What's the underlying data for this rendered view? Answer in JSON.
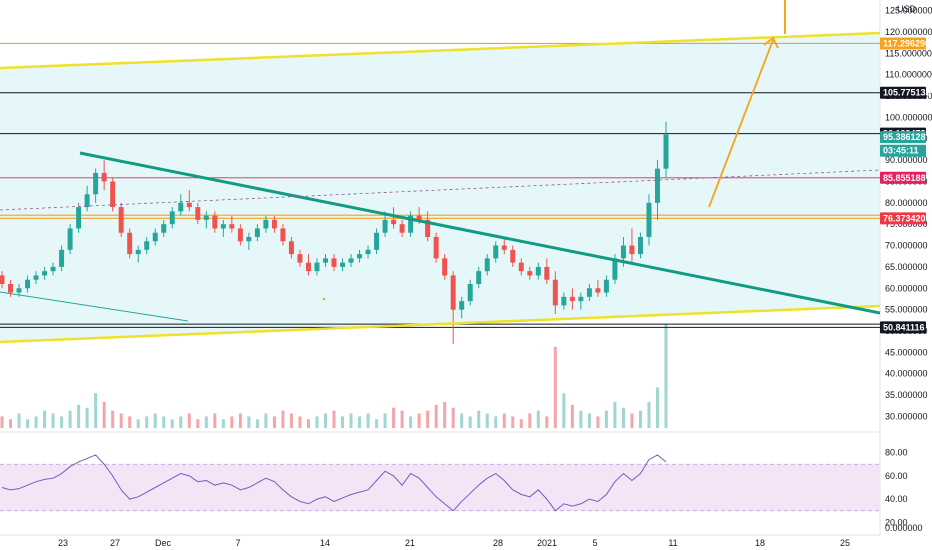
{
  "chart_data": {
    "type": "candlestick",
    "currency": "USD",
    "price_axis_ticks": [
      "125.000000",
      "120.000000",
      "115.000000",
      "110.000000",
      "105.000000",
      "100.000000",
      "95.000000",
      "90.000000",
      "85.000000",
      "80.000000",
      "75.000000",
      "70.000000",
      "65.000000",
      "60.000000",
      "55.000000",
      "50.000000",
      "45.000000",
      "40.000000",
      "35.000000",
      "30.000000"
    ],
    "ylim": [
      28,
      127
    ],
    "x_ticks": [
      "23",
      "27",
      "Dec",
      "7",
      "14",
      "21",
      "28",
      "2021",
      "5",
      "11",
      "18",
      "25"
    ],
    "badges": [
      {
        "label": "117.296296",
        "price": 117.3,
        "bg": "#f7a21b",
        "fg": "#ffffff"
      },
      {
        "label": "105.775133",
        "price": 105.775,
        "bg": "#131722",
        "fg": "#ffffff"
      },
      {
        "label": "96.199478",
        "price": 96.2,
        "bg": "#131722",
        "fg": "#ffffff"
      },
      {
        "label": "95.386128",
        "price": 95.386,
        "bg": "#26a69a",
        "fg": "#ffffff"
      },
      {
        "label": "03:45:11",
        "price": 92.2,
        "bg": "#26a69a",
        "fg": "#ffffff"
      },
      {
        "label": "85.855188",
        "price": 85.855,
        "bg": "#e91e63",
        "fg": "#ffffff"
      },
      {
        "label": "76.373420",
        "price": 76.373,
        "bg": "#f23645",
        "fg": "#ffffff"
      },
      {
        "label": "50.841116",
        "price": 50.841,
        "bg": "#131722",
        "fg": "#ffffff"
      }
    ],
    "ohlc": [
      [
        0,
        63,
        64,
        60,
        61
      ],
      [
        1,
        61,
        62,
        58,
        59
      ],
      [
        2,
        59,
        61,
        58,
        60
      ],
      [
        3,
        60,
        63,
        59,
        62
      ],
      [
        4,
        62,
        64,
        61,
        63
      ],
      [
        5,
        63,
        65,
        62,
        64
      ],
      [
        6,
        64,
        66,
        63,
        65
      ],
      [
        7,
        65,
        70,
        64,
        69
      ],
      [
        8,
        69,
        75,
        68,
        74
      ],
      [
        9,
        74,
        80,
        73,
        79
      ],
      [
        10,
        79,
        84,
        78,
        82
      ],
      [
        11,
        82,
        88,
        80,
        87
      ],
      [
        12,
        87,
        90,
        83,
        85
      ],
      [
        13,
        85,
        86,
        78,
        79
      ],
      [
        14,
        79,
        80,
        72,
        73
      ],
      [
        15,
        73,
        74,
        67,
        68
      ],
      [
        16,
        68,
        70,
        66,
        69
      ],
      [
        17,
        69,
        72,
        68,
        71
      ],
      [
        18,
        71,
        74,
        70,
        73
      ],
      [
        19,
        73,
        76,
        72,
        75
      ],
      [
        20,
        75,
        79,
        74,
        78
      ],
      [
        21,
        78,
        82,
        77,
        80
      ],
      [
        22,
        80,
        83,
        78,
        79
      ],
      [
        23,
        79,
        80,
        75,
        76
      ],
      [
        24,
        76,
        78,
        74,
        77
      ],
      [
        25,
        77,
        78,
        73,
        74
      ],
      [
        26,
        74,
        76,
        72,
        75
      ],
      [
        27,
        75,
        77,
        73,
        74
      ],
      [
        28,
        74,
        75,
        70,
        71
      ],
      [
        29,
        71,
        73,
        69,
        72
      ],
      [
        30,
        72,
        75,
        71,
        74
      ],
      [
        31,
        74,
        77,
        73,
        76
      ],
      [
        32,
        76,
        77,
        73,
        74
      ],
      [
        33,
        74,
        75,
        70,
        71
      ],
      [
        34,
        71,
        72,
        67,
        68
      ],
      [
        35,
        68,
        69,
        65,
        66
      ],
      [
        36,
        66,
        68,
        63,
        64
      ],
      [
        37,
        64,
        67,
        63,
        66
      ],
      [
        38,
        66,
        68,
        65,
        67
      ],
      [
        39,
        67,
        68,
        64,
        65
      ],
      [
        40,
        65,
        67,
        64,
        66
      ],
      [
        41,
        66,
        68,
        65,
        67
      ],
      [
        42,
        67,
        69,
        66,
        68
      ],
      [
        43,
        68,
        70,
        67,
        69
      ],
      [
        44,
        69,
        74,
        68,
        73
      ],
      [
        45,
        73,
        78,
        72,
        76
      ],
      [
        46,
        76,
        79,
        74,
        75
      ],
      [
        47,
        75,
        76,
        72,
        73
      ],
      [
        48,
        73,
        78,
        72,
        77
      ],
      [
        49,
        77,
        79,
        75,
        76
      ],
      [
        50,
        76,
        78,
        71,
        72
      ],
      [
        51,
        72,
        73,
        66,
        67
      ],
      [
        52,
        67,
        68,
        62,
        63
      ],
      [
        53,
        63,
        64,
        47,
        55
      ],
      [
        54,
        55,
        58,
        53,
        57
      ],
      [
        55,
        57,
        62,
        56,
        61
      ],
      [
        56,
        61,
        65,
        60,
        64
      ],
      [
        57,
        64,
        68,
        63,
        67
      ],
      [
        58,
        67,
        71,
        66,
        70
      ],
      [
        59,
        70,
        72,
        68,
        69
      ],
      [
        60,
        69,
        70,
        65,
        66
      ],
      [
        61,
        66,
        67,
        63,
        64
      ],
      [
        62,
        64,
        65,
        62,
        63
      ],
      [
        63,
        63,
        66,
        62,
        65
      ],
      [
        64,
        65,
        67,
        61,
        62
      ],
      [
        65,
        62,
        64,
        54,
        56
      ],
      [
        66,
        56,
        59,
        55,
        58
      ],
      [
        67,
        58,
        60,
        55,
        57
      ],
      [
        68,
        57,
        59,
        55,
        58
      ],
      [
        69,
        58,
        61,
        57,
        60
      ],
      [
        70,
        60,
        62,
        58,
        59
      ],
      [
        71,
        59,
        63,
        58,
        62
      ],
      [
        72,
        62,
        68,
        61,
        67
      ],
      [
        73,
        67,
        72,
        65,
        70
      ],
      [
        74,
        70,
        74,
        66,
        68
      ],
      [
        75,
        68,
        73,
        67,
        72
      ],
      [
        76,
        72,
        82,
        70,
        80
      ],
      [
        77,
        80,
        90,
        76,
        88
      ],
      [
        78,
        88,
        99,
        86,
        96
      ]
    ],
    "volume": [
      4,
      3,
      5,
      3,
      4,
      6,
      5,
      4,
      6,
      8,
      7,
      12,
      9,
      6,
      5,
      4,
      3,
      4,
      5,
      4,
      3,
      4,
      5,
      3,
      4,
      5,
      3,
      4,
      5,
      4,
      3,
      5,
      4,
      6,
      5,
      4,
      3,
      4,
      5,
      6,
      4,
      5,
      4,
      5,
      3,
      5,
      7,
      6,
      4,
      5,
      6,
      8,
      9,
      7,
      5,
      4,
      6,
      5,
      4,
      5,
      4,
      3,
      5,
      6,
      4,
      28,
      12,
      8,
      6,
      5,
      4,
      6,
      9,
      7,
      5,
      6,
      9,
      14,
      36
    ],
    "rsi": {
      "ticks": [
        "80.00",
        "60.00",
        "40.00",
        "20.00"
      ],
      "upper": 70,
      "lower": 30,
      "values": [
        50,
        48,
        49,
        52,
        55,
        57,
        58,
        62,
        68,
        72,
        75,
        78,
        70,
        60,
        48,
        40,
        42,
        46,
        50,
        54,
        58,
        62,
        60,
        55,
        56,
        52,
        54,
        52,
        48,
        50,
        54,
        58,
        55,
        48,
        42,
        38,
        36,
        40,
        42,
        38,
        41,
        44,
        46,
        48,
        56,
        64,
        60,
        52,
        62,
        58,
        50,
        42,
        36,
        30,
        38,
        45,
        52,
        58,
        62,
        56,
        48,
        44,
        42,
        48,
        40,
        30,
        36,
        34,
        36,
        40,
        38,
        44,
        55,
        62,
        56,
        62,
        74,
        78,
        72
      ]
    },
    "bottom_axis_tick": "0.000000"
  }
}
